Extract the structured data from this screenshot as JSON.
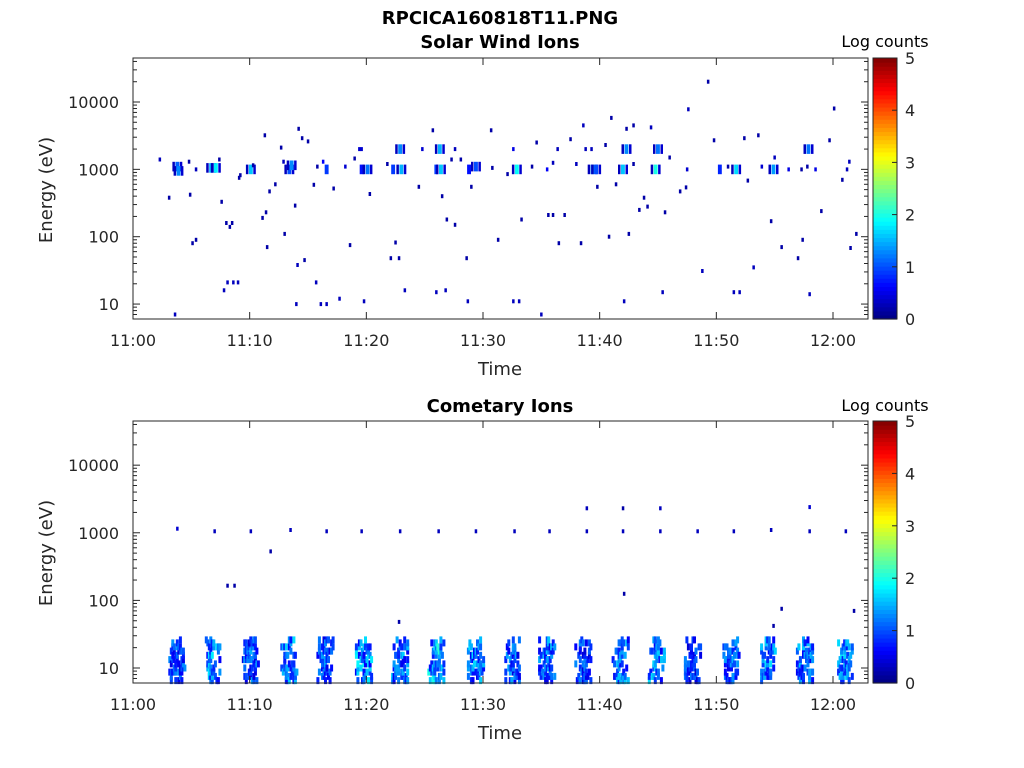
{
  "figure_title": "RPCICA160818T11.PNG",
  "chart_data": [
    {
      "type": "heatmap",
      "title": "Solar Wind Ions",
      "xlabel": "Time",
      "ylabel": "Energy (eV)",
      "x_tick_labels": [
        "11:00",
        "11:10",
        "11:20",
        "11:30",
        "11:40",
        "11:50",
        "12:00"
      ],
      "x_ticks_minutes": [
        0,
        10,
        20,
        30,
        40,
        50,
        60
      ],
      "xlim_minutes": [
        0,
        63
      ],
      "y_scale": "log",
      "y_tick_labels": [
        "10",
        "100",
        "1000",
        "10000"
      ],
      "y_ticks": [
        10,
        100,
        1000,
        10000
      ],
      "ylim": [
        6,
        45000
      ],
      "colorbar": {
        "title": "Log counts",
        "range": [
          0,
          5
        ],
        "tick_labels": [
          "0",
          "1",
          "2",
          "3",
          "4",
          "5"
        ],
        "colormap": "jet"
      },
      "points": [
        [
          2.3,
          1400,
          0.3
        ],
        [
          3.1,
          380,
          0.2
        ],
        [
          3.6,
          7,
          0.3
        ],
        [
          3.8,
          1100,
          1.1
        ],
        [
          3.9,
          950,
          1.3
        ],
        [
          4.8,
          1300,
          0.2
        ],
        [
          4.9,
          420,
          0.2
        ],
        [
          5.1,
          80,
          0.2
        ],
        [
          5.4,
          90,
          0.2
        ],
        [
          5.4,
          1000,
          0.3
        ],
        [
          6.7,
          1050,
          1.5
        ],
        [
          7.1,
          1050,
          1.8
        ],
        [
          7.4,
          1400,
          0.2
        ],
        [
          7.6,
          330,
          0.2
        ],
        [
          7.8,
          16,
          0.3
        ],
        [
          8.0,
          160,
          0.2
        ],
        [
          8.1,
          21,
          0.3
        ],
        [
          8.3,
          140,
          0.2
        ],
        [
          8.5,
          160,
          0.2
        ],
        [
          8.6,
          21,
          0.3
        ],
        [
          9.0,
          21,
          0.3
        ],
        [
          9.1,
          750,
          0.2
        ],
        [
          9.2,
          820,
          0.2
        ],
        [
          10.1,
          1000,
          1.6
        ],
        [
          10.3,
          1150,
          0.2
        ],
        [
          11.1,
          190,
          0.2
        ],
        [
          11.3,
          3200,
          0.2
        ],
        [
          11.4,
          230,
          0.2
        ],
        [
          11.5,
          70,
          0.2
        ],
        [
          11.7,
          470,
          0.2
        ],
        [
          12.2,
          600,
          0.2
        ],
        [
          12.7,
          2100,
          0.2
        ],
        [
          12.9,
          1300,
          0.3
        ],
        [
          13.0,
          110,
          0.2
        ],
        [
          13.4,
          1000,
          1.0
        ],
        [
          13.6,
          1150,
          1.3
        ],
        [
          13.9,
          290,
          0.2
        ],
        [
          14.0,
          10,
          0.3
        ],
        [
          14.1,
          38,
          0.3
        ],
        [
          14.2,
          4000,
          0.2
        ],
        [
          14.5,
          2900,
          0.2
        ],
        [
          14.7,
          45,
          0.2
        ],
        [
          15.0,
          2600,
          0.2
        ],
        [
          15.5,
          590,
          0.2
        ],
        [
          15.7,
          21,
          0.3
        ],
        [
          15.8,
          1100,
          0.2
        ],
        [
          16.1,
          10,
          0.3
        ],
        [
          16.3,
          1300,
          0.6
        ],
        [
          16.6,
          10,
          0.3
        ],
        [
          16.6,
          1000,
          0.9
        ],
        [
          17.2,
          520,
          0.2
        ],
        [
          17.7,
          12,
          0.3
        ],
        [
          18.2,
          1100,
          0.4
        ],
        [
          18.6,
          75,
          0.2
        ],
        [
          19.0,
          1450,
          0.2
        ],
        [
          19.4,
          2000,
          0.4
        ],
        [
          19.6,
          2000,
          0.4
        ],
        [
          19.6,
          1000,
          0.7
        ],
        [
          19.8,
          11,
          0.3
        ],
        [
          20.1,
          1000,
          1.2
        ],
        [
          20.3,
          430,
          0.2
        ],
        [
          21.8,
          1200,
          0.2
        ],
        [
          22.1,
          48,
          0.2
        ],
        [
          22.3,
          1000,
          0.9
        ],
        [
          22.5,
          82,
          0.2
        ],
        [
          22.8,
          48,
          0.2
        ],
        [
          22.9,
          2000,
          1.3
        ],
        [
          23.0,
          1000,
          1.5
        ],
        [
          23.3,
          16,
          0.3
        ],
        [
          24.5,
          550,
          0.2
        ],
        [
          24.8,
          2000,
          0.4
        ],
        [
          25.7,
          3800,
          0.2
        ],
        [
          26.0,
          15,
          0.3
        ],
        [
          26.0,
          1000,
          0.9
        ],
        [
          26.3,
          2000,
          1.5
        ],
        [
          26.4,
          1000,
          1.6
        ],
        [
          26.5,
          400,
          0.2
        ],
        [
          26.8,
          16,
          0.3
        ],
        [
          26.9,
          180,
          0.2
        ],
        [
          27.3,
          1400,
          0.2
        ],
        [
          27.6,
          2000,
          0.3
        ],
        [
          27.6,
          150,
          0.2
        ],
        [
          28.1,
          1400,
          0.2
        ],
        [
          28.6,
          48,
          0.2
        ],
        [
          28.8,
          1000,
          0.7
        ],
        [
          28.7,
          11,
          0.3
        ],
        [
          29.0,
          550,
          0.2
        ],
        [
          29.4,
          1100,
          1.0
        ],
        [
          30.8,
          1050,
          0.2
        ],
        [
          30.7,
          3800,
          0.2
        ],
        [
          31.3,
          90,
          0.2
        ],
        [
          32.1,
          850,
          0.2
        ],
        [
          32.6,
          2000,
          0.5
        ],
        [
          32.6,
          11,
          0.3
        ],
        [
          32.9,
          1000,
          1.9
        ],
        [
          33.1,
          11,
          0.3
        ],
        [
          33.3,
          180,
          0.2
        ],
        [
          34.2,
          1100,
          0.2
        ],
        [
          34.6,
          2500,
          0.2
        ],
        [
          35.0,
          7,
          0.3
        ],
        [
          35.5,
          1000,
          0.6
        ],
        [
          35.6,
          210,
          0.2
        ],
        [
          36.0,
          1250,
          0.3
        ],
        [
          36.0,
          210,
          0.2
        ],
        [
          36.4,
          2000,
          0.3
        ],
        [
          36.5,
          80,
          0.2
        ],
        [
          37.0,
          210,
          0.2
        ],
        [
          37.5,
          2800,
          0.2
        ],
        [
          38.0,
          1200,
          0.3
        ],
        [
          38.4,
          80,
          0.2
        ],
        [
          38.6,
          4500,
          0.3
        ],
        [
          38.8,
          2000,
          0.3
        ],
        [
          39.3,
          2000,
          0.3
        ],
        [
          39.4,
          1000,
          1.3
        ],
        [
          39.7,
          1000,
          1.0
        ],
        [
          39.8,
          550,
          0.2
        ],
        [
          40.5,
          2300,
          0.2
        ],
        [
          40.8,
          100,
          0.2
        ],
        [
          41.0,
          5800,
          0.2
        ],
        [
          41.4,
          600,
          0.2
        ],
        [
          42.0,
          1000,
          1.6
        ],
        [
          42.1,
          11,
          0.3
        ],
        [
          42.3,
          2000,
          1.3
        ],
        [
          42.3,
          4000,
          0.2
        ],
        [
          42.5,
          110,
          0.2
        ],
        [
          42.9,
          4500,
          0.2
        ],
        [
          42.9,
          1200,
          0.2
        ],
        [
          43.4,
          250,
          0.2
        ],
        [
          43.8,
          380,
          0.2
        ],
        [
          44.1,
          280,
          0.2
        ],
        [
          44.4,
          4200,
          0.3
        ],
        [
          44.8,
          1000,
          2.0
        ],
        [
          45.0,
          2000,
          1.2
        ],
        [
          45.4,
          15,
          0.3
        ],
        [
          45.6,
          230,
          0.2
        ],
        [
          46.0,
          1500,
          0.2
        ],
        [
          46.9,
          470,
          0.2
        ],
        [
          47.4,
          540,
          0.2
        ],
        [
          47.6,
          7800,
          0.3
        ],
        [
          47.5,
          1000,
          0.4
        ],
        [
          48.8,
          31,
          0.3
        ],
        [
          49.3,
          20000,
          0.2
        ],
        [
          49.8,
          2700,
          0.2
        ],
        [
          50.3,
          1000,
          0.8
        ],
        [
          51.0,
          1100,
          0.2
        ],
        [
          51.5,
          15,
          0.3
        ],
        [
          51.7,
          1000,
          1.7
        ],
        [
          52.0,
          15,
          0.3
        ],
        [
          52.4,
          2900,
          0.2
        ],
        [
          52.7,
          680,
          0.2
        ],
        [
          53.2,
          35,
          0.3
        ],
        [
          53.6,
          3200,
          0.2
        ],
        [
          53.9,
          1100,
          0.4
        ],
        [
          54.7,
          170,
          0.2
        ],
        [
          54.9,
          1000,
          1.4
        ],
        [
          55.0,
          1500,
          0.3
        ],
        [
          55.6,
          70,
          0.2
        ],
        [
          56.2,
          1000,
          0.5
        ],
        [
          57.0,
          48,
          0.2
        ],
        [
          57.3,
          1000,
          0.2
        ],
        [
          57.4,
          90,
          0.2
        ],
        [
          57.8,
          1100,
          0.2
        ],
        [
          57.9,
          2000,
          1.2
        ],
        [
          58.0,
          14,
          0.3
        ],
        [
          58.5,
          1000,
          0.5
        ],
        [
          59.0,
          240,
          0.2
        ],
        [
          59.7,
          2700,
          0.2
        ],
        [
          60.1,
          8000,
          0.2
        ],
        [
          60.8,
          700,
          0.2
        ],
        [
          61.2,
          1000,
          0.3
        ],
        [
          61.4,
          1300,
          0.3
        ],
        [
          61.5,
          68,
          0.2
        ],
        [
          62.0,
          110,
          0.2
        ]
      ]
    },
    {
      "type": "heatmap",
      "title": "Cometary Ions",
      "xlabel": "Time",
      "ylabel": "Energy (eV)",
      "x_tick_labels": [
        "11:00",
        "11:10",
        "11:20",
        "11:30",
        "11:40",
        "11:50",
        "12:00"
      ],
      "x_ticks_minutes": [
        0,
        10,
        20,
        30,
        40,
        50,
        60
      ],
      "xlim_minutes": [
        0,
        63
      ],
      "y_scale": "log",
      "y_tick_labels": [
        "10",
        "100",
        "1000",
        "10000"
      ],
      "y_ticks": [
        10,
        100,
        1000,
        10000
      ],
      "ylim": [
        6,
        45000
      ],
      "colorbar": {
        "title": "Log counts",
        "range": [
          0,
          5
        ],
        "tick_labels": [
          "0",
          "1",
          "2",
          "3",
          "4",
          "5"
        ],
        "colormap": "jet"
      },
      "points": [
        [
          3.8,
          1150,
          0.4
        ],
        [
          7.0,
          1050,
          0.3
        ],
        [
          8.1,
          165,
          0.2
        ],
        [
          8.7,
          165,
          0.2
        ],
        [
          10.1,
          1050,
          0.3
        ],
        [
          11.8,
          530,
          0.2
        ],
        [
          13.5,
          1100,
          0.3
        ],
        [
          16.6,
          1050,
          0.3
        ],
        [
          19.6,
          1050,
          0.3
        ],
        [
          22.9,
          1050,
          0.3
        ],
        [
          22.8,
          48,
          0.2
        ],
        [
          26.2,
          1050,
          0.3
        ],
        [
          29.4,
          1050,
          0.3
        ],
        [
          32.7,
          1050,
          0.3
        ],
        [
          35.7,
          1050,
          0.3
        ],
        [
          38.9,
          1050,
          0.3
        ],
        [
          38.9,
          2300,
          0.3
        ],
        [
          42.0,
          1050,
          0.3
        ],
        [
          42.0,
          2300,
          0.2
        ],
        [
          42.1,
          125,
          0.2
        ],
        [
          45.2,
          1050,
          0.3
        ],
        [
          45.2,
          2300,
          0.3
        ],
        [
          48.4,
          1050,
          0.3
        ],
        [
          51.5,
          1050,
          0.3
        ],
        [
          54.7,
          1100,
          0.3
        ],
        [
          54.9,
          42,
          0.2
        ],
        [
          55.6,
          75,
          0.2
        ],
        [
          58.0,
          1050,
          0.3
        ],
        [
          58.0,
          2400,
          0.4
        ],
        [
          61.1,
          1050,
          0.3
        ],
        [
          61.8,
          70,
          0.2
        ]
      ],
      "low_energy_bursts": [
        {
          "t": 3.8,
          "amp": 1.3
        },
        {
          "t": 6.8,
          "amp": 1.7
        },
        {
          "t": 10.1,
          "amp": 1.4
        },
        {
          "t": 13.4,
          "amp": 1.6
        },
        {
          "t": 16.5,
          "amp": 1.3
        },
        {
          "t": 19.8,
          "amp": 1.7
        },
        {
          "t": 22.9,
          "amp": 1.5
        },
        {
          "t": 26.0,
          "amp": 1.9
        },
        {
          "t": 29.4,
          "amp": 1.6
        },
        {
          "t": 32.6,
          "amp": 1.4
        },
        {
          "t": 35.5,
          "amp": 1.5
        },
        {
          "t": 38.6,
          "amp": 1.2
        },
        {
          "t": 41.8,
          "amp": 1.5
        },
        {
          "t": 44.9,
          "amp": 1.6
        },
        {
          "t": 48.0,
          "amp": 1.2
        },
        {
          "t": 51.3,
          "amp": 1.4
        },
        {
          "t": 54.4,
          "amp": 1.6
        },
        {
          "t": 57.6,
          "amp": 1.5
        },
        {
          "t": 61.0,
          "amp": 1.6
        }
      ]
    }
  ]
}
